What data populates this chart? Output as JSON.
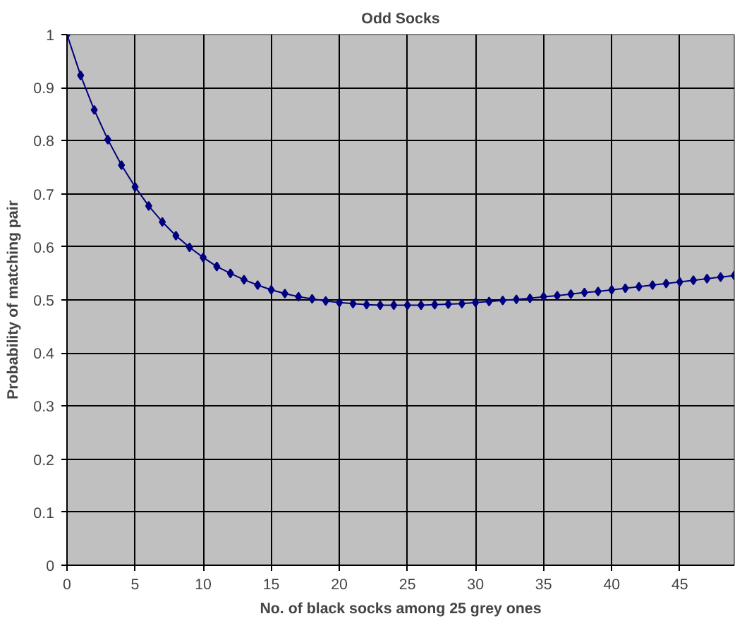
{
  "chart_data": {
    "type": "line",
    "title": "Odd Socks",
    "xlabel": "No. of black socks among 25 grey ones",
    "ylabel": "Probability of matching pair",
    "x": [
      0,
      1,
      2,
      3,
      4,
      5,
      6,
      7,
      8,
      9,
      10,
      11,
      12,
      13,
      14,
      15,
      16,
      17,
      18,
      19,
      20,
      21,
      22,
      23,
      24,
      25,
      26,
      27,
      28,
      29,
      30,
      31,
      32,
      33,
      34,
      35,
      36,
      37,
      38,
      39,
      40,
      41,
      42,
      43,
      44,
      45,
      46,
      47,
      48,
      49
    ],
    "series": [
      {
        "color": "#000080",
        "values": [
          1.0,
          0.923,
          0.858,
          0.802,
          0.754,
          0.713,
          0.677,
          0.647,
          0.621,
          0.599,
          0.58,
          0.563,
          0.55,
          0.538,
          0.528,
          0.519,
          0.512,
          0.506,
          0.502,
          0.498,
          0.495,
          0.493,
          0.491,
          0.49,
          0.49,
          0.49,
          0.49,
          0.491,
          0.492,
          0.493,
          0.495,
          0.497,
          0.499,
          0.501,
          0.503,
          0.506,
          0.508,
          0.511,
          0.514,
          0.516,
          0.519,
          0.522,
          0.525,
          0.528,
          0.531,
          0.534,
          0.537,
          0.54,
          0.543,
          0.546
        ]
      }
    ],
    "xlim": [
      0,
      49
    ],
    "xticks": [
      0,
      5,
      10,
      15,
      20,
      25,
      30,
      35,
      40,
      45
    ],
    "ylim": [
      0,
      1
    ],
    "yticks": [
      0,
      0.1,
      0.2,
      0.3,
      0.4,
      0.5,
      0.6,
      0.7,
      0.8,
      0.9,
      1
    ],
    "grid": true,
    "marker": "diamond",
    "line_style": "solid"
  }
}
